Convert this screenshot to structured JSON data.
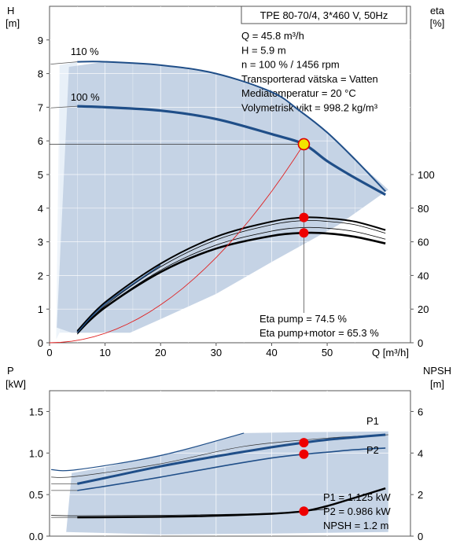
{
  "chart_data": [
    {
      "type": "line",
      "xlabel": "Q [m³/h]",
      "ylabel_left": "H\n[m]",
      "ylabel_right": "eta\n[%]",
      "xlim": [
        0,
        65
      ],
      "ylim": [
        0,
        10
      ],
      "x_ticks": [
        0,
        10,
        20,
        30,
        40,
        50
      ],
      "y_ticks": [
        0,
        1,
        2,
        3,
        4,
        5,
        6,
        7,
        8,
        9
      ],
      "eta_ticks": [
        0,
        20,
        40,
        60,
        80,
        100
      ],
      "eta_scale": 20,
      "title_box": "TPE 80-70/4, 3*460 V, 50Hz",
      "info_lines": [
        "Q = 45.8 m³/h",
        "H = 5.9 m",
        "n = 100 % / 1456 rpm",
        "Transporterad vätska = Vatten",
        "Mediatemperatur = 20 °C",
        "Volymetrisk vikt = 998.2 kg/m³"
      ],
      "eta_lines": [
        "Eta pump = 74.5 %",
        "Eta pump+motor = 65.3 %"
      ],
      "series": [
        {
          "name": "110 %",
          "x": [
            5,
            10,
            20,
            30,
            40,
            45,
            50,
            55,
            60.5
          ],
          "y": [
            8.35,
            8.35,
            8.25,
            8.0,
            7.45,
            6.9,
            6.25,
            5.45,
            4.5
          ]
        },
        {
          "name": "100 %",
          "x": [
            5,
            10,
            20,
            30,
            40,
            45.8,
            50,
            55,
            60.5
          ],
          "y": [
            7.03,
            7.0,
            6.9,
            6.65,
            6.2,
            5.9,
            5.4,
            4.9,
            4.4
          ]
        },
        {
          "name": "eta pump",
          "x": [
            5,
            10,
            20,
            30,
            40,
            45.8,
            50,
            55,
            60.5
          ],
          "eta": [
            7,
            24,
            47,
            63,
            72,
            74.5,
            74,
            72,
            67
          ]
        },
        {
          "name": "eta pump+motor",
          "x": [
            5,
            10,
            20,
            30,
            40,
            45.8,
            50,
            55,
            60.5
          ],
          "eta": [
            6,
            21,
            42,
            56,
            63.5,
            65.3,
            65,
            63,
            59
          ]
        },
        {
          "name": "system curve",
          "x": [
            0,
            10,
            20,
            30,
            40,
            45.8
          ],
          "y": [
            0,
            0.28,
            1.12,
            2.53,
            4.5,
            5.9
          ]
        }
      ],
      "points": [
        {
          "x": 45.8,
          "y": 5.9,
          "kind": "duty"
        },
        {
          "x": 45.8,
          "eta": 74.5
        },
        {
          "x": 45.8,
          "eta": 65.3
        }
      ]
    },
    {
      "type": "line",
      "ylabel_left": "P\n[kW]",
      "ylabel_right": "NPSH\n[m]",
      "xlim": [
        0,
        65
      ],
      "ylim": [
        0,
        1.75
      ],
      "y_ticks": [
        "0.0",
        "0.5",
        "1.0",
        "1.5"
      ],
      "npsh_ticks": [
        0,
        2,
        4,
        6
      ],
      "npsh_scale": 4,
      "series": [
        {
          "name": "P1",
          "x": [
            5,
            10,
            20,
            30,
            40,
            45.8,
            50,
            55,
            60.5
          ],
          "y": [
            0.63,
            0.7,
            0.84,
            0.96,
            1.07,
            1.125,
            1.16,
            1.19,
            1.22
          ]
        },
        {
          "name": "P2",
          "x": [
            5,
            10,
            20,
            30,
            40,
            45.8,
            50,
            55,
            60.5
          ],
          "y": [
            0.55,
            0.6,
            0.71,
            0.83,
            0.94,
            0.986,
            1.01,
            1.04,
            1.06
          ]
        },
        {
          "name": "NPSH",
          "x": [
            5,
            20,
            30,
            40,
            45.8,
            50,
            55,
            60.5
          ],
          "npsh": [
            0.9,
            0.93,
            0.98,
            1.08,
            1.2,
            1.45,
            1.85,
            2.3
          ]
        }
      ],
      "labels": [
        "P1",
        "P2"
      ],
      "info_lines": [
        "P1 = 1.125 kW",
        "P2 = 0.986 kW",
        "NPSH = 1.2 m"
      ],
      "points": [
        {
          "x": 45.8,
          "y": 1.125
        },
        {
          "x": 45.8,
          "y": 0.986
        },
        {
          "x": 45.8,
          "npsh": 1.2
        }
      ]
    }
  ]
}
